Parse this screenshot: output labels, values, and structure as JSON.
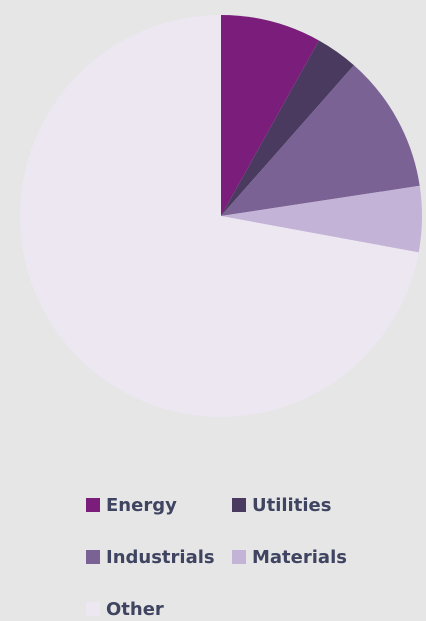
{
  "chart_data": {
    "type": "pie",
    "categories": [
      "Energy",
      "Utilities",
      "Industrials",
      "Materials",
      "Other"
    ],
    "values": [
      8.1,
      3.4,
      11.1,
      5.3,
      72.1
    ],
    "colors": [
      "#7b1d7b",
      "#4a3a5f",
      "#7a6294",
      "#c3b3d7",
      "#ece7f1"
    ],
    "legend": "bottom"
  }
}
